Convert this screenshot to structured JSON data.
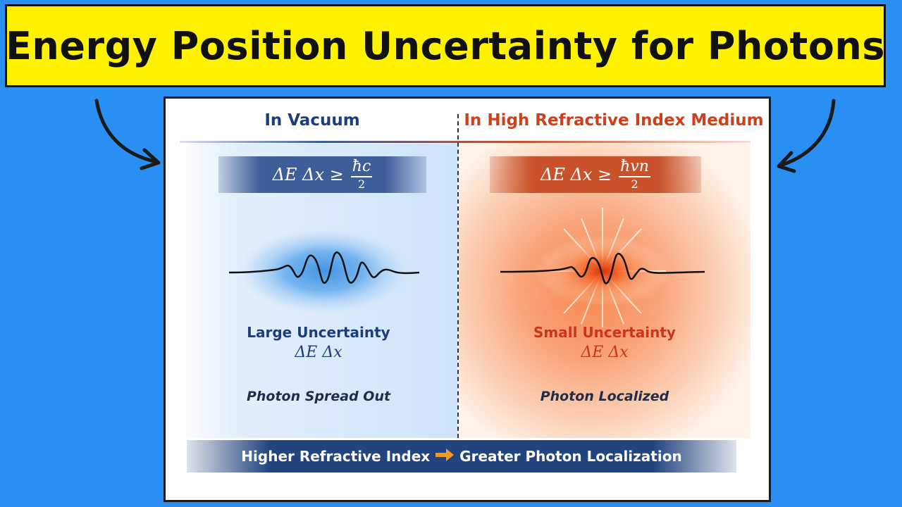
{
  "title": "Energy Position Uncertainty for Photons",
  "vacuum": {
    "heading": "In Vacuum",
    "equation_lhs": "ΔE Δx ≥",
    "equation_num": "ħc",
    "equation_den": "2",
    "uncertainty_label": "Large Uncertainty",
    "uncertainty_expr": "ΔE Δx",
    "description": "Photon Spread Out",
    "color": "#1d3d7a"
  },
  "medium": {
    "heading": "In High Refractive Index Medium",
    "equation_lhs": "ΔE Δx ≥",
    "equation_num": "ħvn",
    "equation_den": "2",
    "uncertainty_label": "Small Uncertainty",
    "uncertainty_expr": "ΔE Δx",
    "description": "Photon Localized",
    "color": "#c9361a"
  },
  "conclusion": {
    "left": "Higher Refractive Index",
    "arrow_icon": "arrow-right-icon",
    "right": "Greater Photon Localization"
  },
  "colors": {
    "background": "#2a8ff2",
    "banner": "#fff200",
    "conclusion_bar": "#23457f",
    "arrow_accent": "#f59a1f"
  }
}
